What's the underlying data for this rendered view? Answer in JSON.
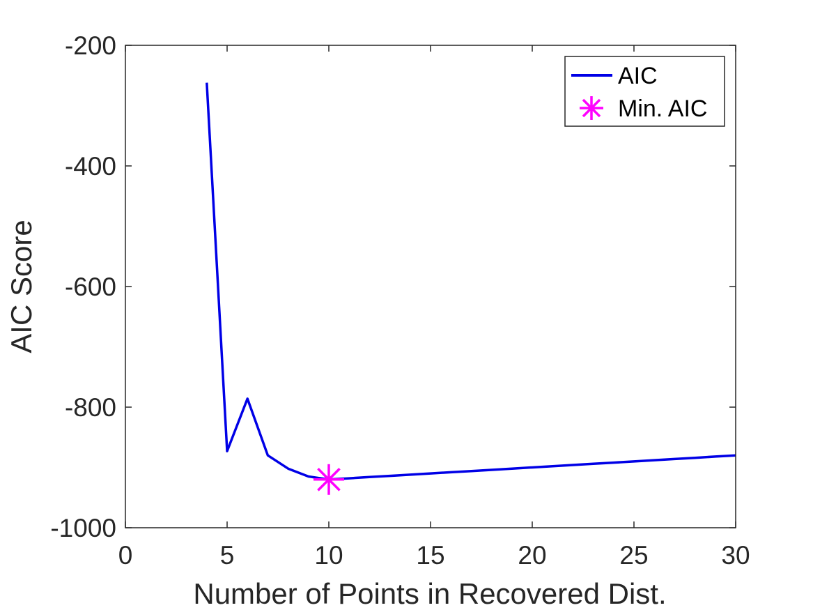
{
  "chart_data": {
    "type": "line",
    "title": "",
    "xlabel": "Number of Points in Recovered Dist.",
    "ylabel": "AIC Score",
    "xlim": [
      0,
      30
    ],
    "ylim": [
      -1000,
      -200
    ],
    "xticks": [
      0,
      5,
      10,
      15,
      20,
      25,
      30
    ],
    "yticks": [
      -1000,
      -800,
      -600,
      -400,
      -200
    ],
    "xtick_labels": [
      "0",
      "5",
      "10",
      "15",
      "20",
      "25",
      "30"
    ],
    "ytick_labels": [
      "-1000",
      "-800",
      "-600",
      "-400",
      "-200"
    ],
    "grid": false,
    "legend_position": "top-right",
    "series": [
      {
        "name": "AIC",
        "color": "#0000e6",
        "marker": "none",
        "x": [
          4,
          5,
          6,
          7,
          8,
          9,
          10,
          11,
          12,
          13,
          14,
          15,
          16,
          17,
          18,
          19,
          20,
          21,
          22,
          23,
          24,
          25,
          26,
          27,
          28,
          29,
          30
        ],
        "y": [
          -262,
          -873,
          -786,
          -880,
          -902,
          -915,
          -920,
          -918,
          -916,
          -914,
          -912,
          -910,
          -908,
          -906,
          -904,
          -902,
          -900,
          -898,
          -896,
          -894,
          -892,
          -890,
          -888,
          -886,
          -884,
          -882,
          -880
        ]
      },
      {
        "name": "Min. AIC",
        "color": "#ff00ff",
        "marker": "asterisk",
        "x": [
          10
        ],
        "y": [
          -920
        ]
      }
    ]
  }
}
